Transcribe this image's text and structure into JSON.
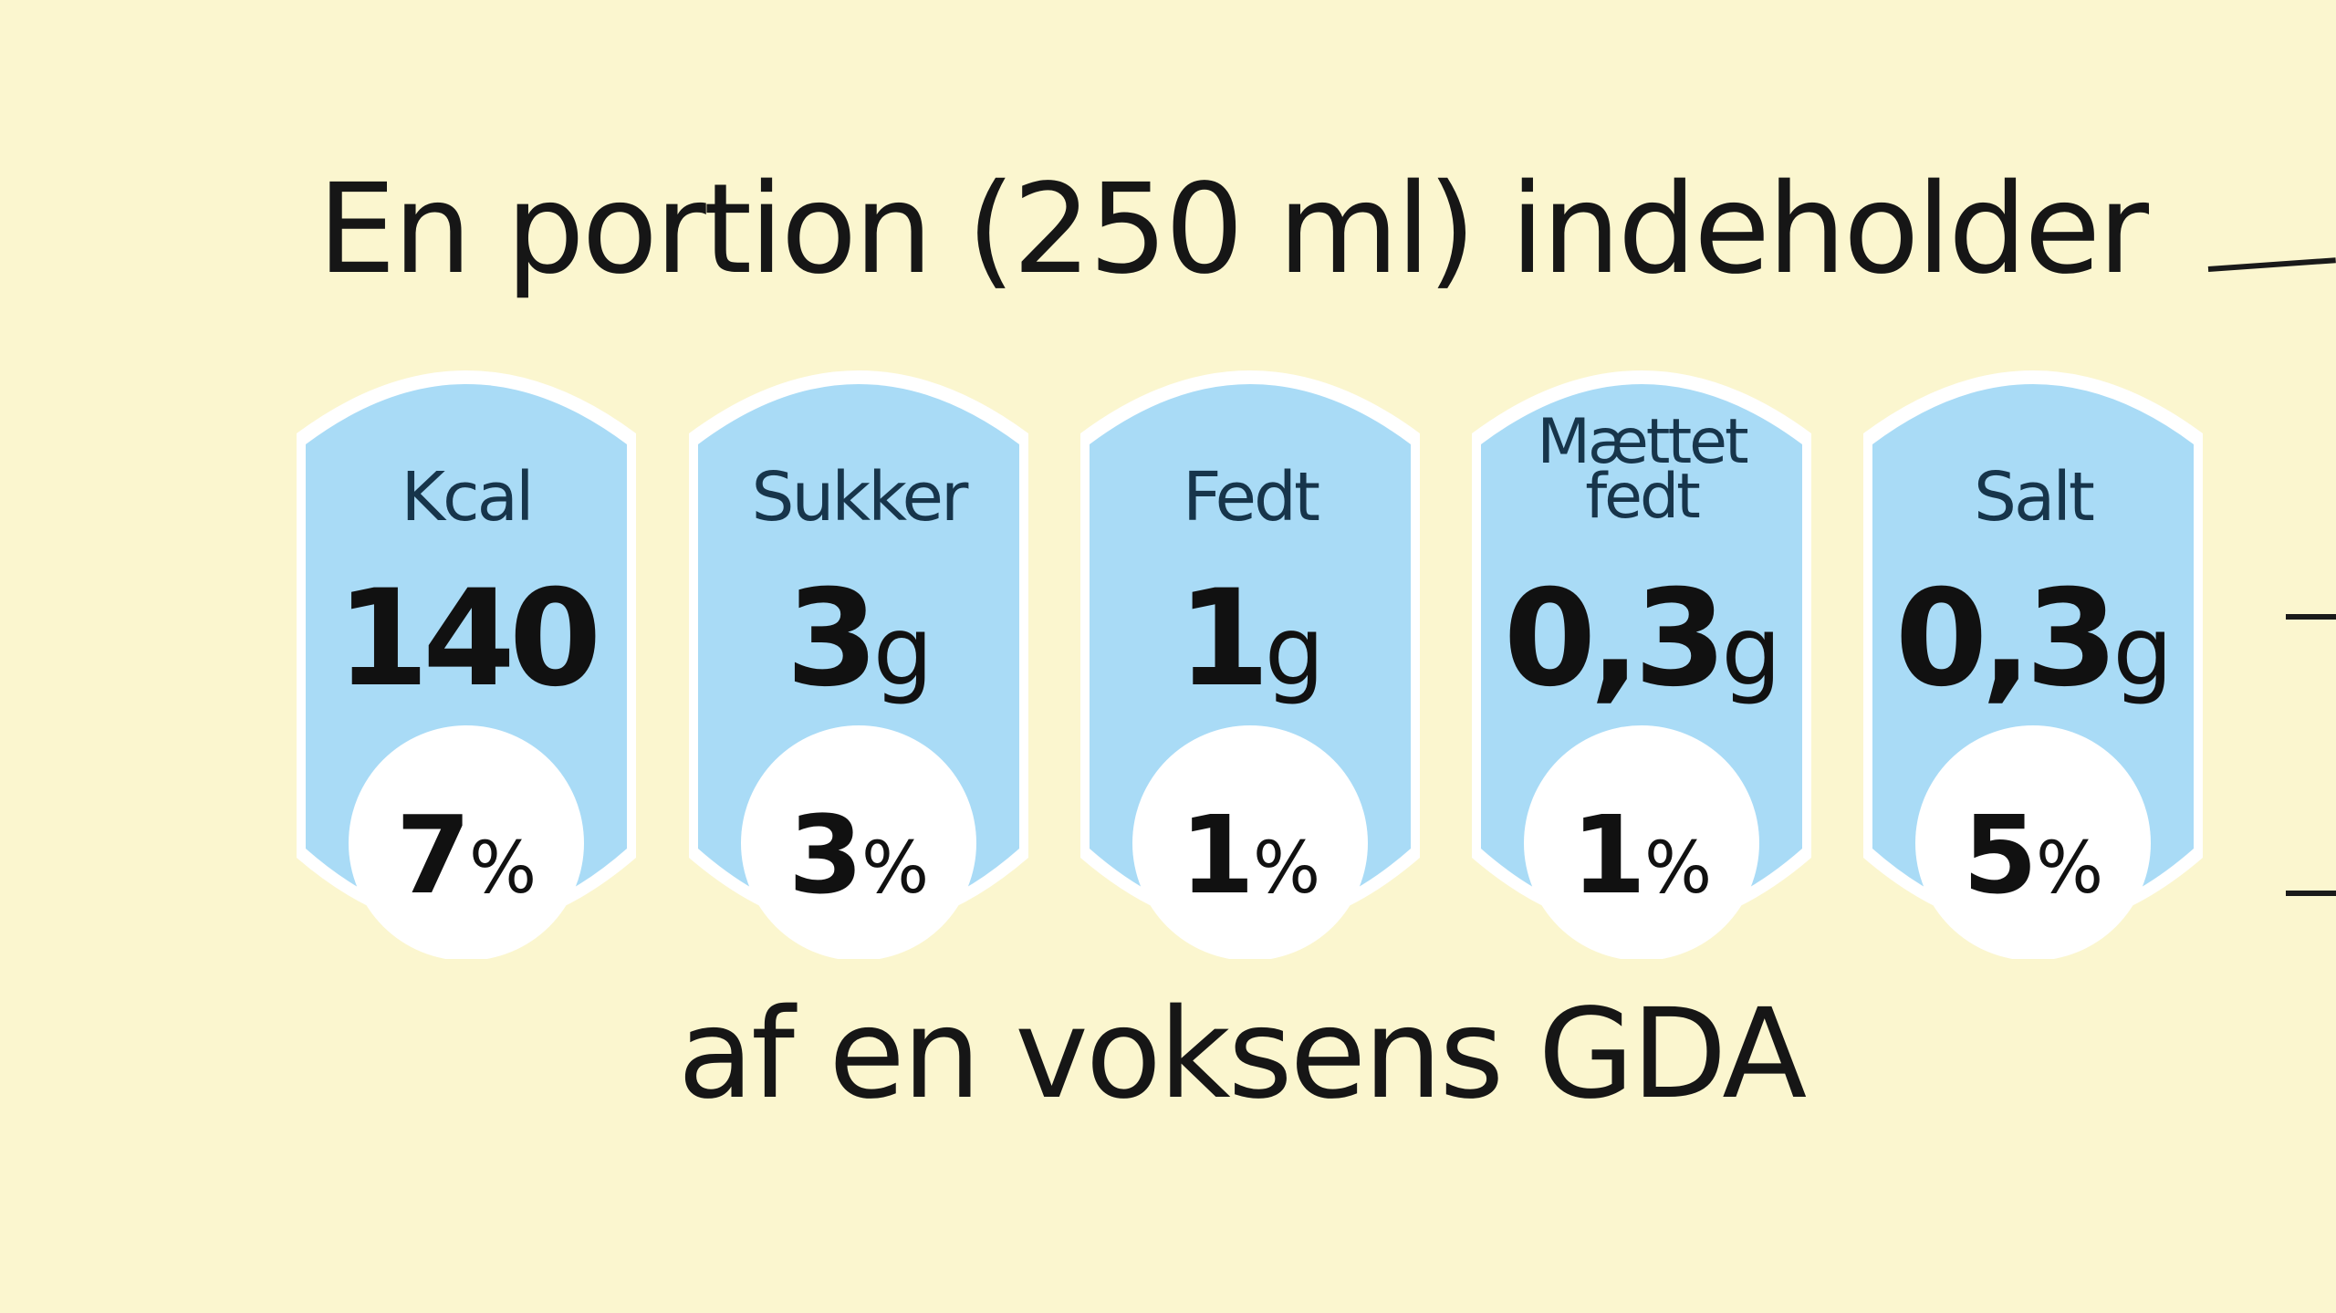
{
  "header": {
    "title": "En portion (250 ml) indeholder"
  },
  "footer": {
    "caption": "af en voksens GDA"
  },
  "nutrients": [
    {
      "label": "Kcal",
      "label_line2": "",
      "value": "140",
      "unit": "",
      "percent": "7",
      "percent_symbol": "%"
    },
    {
      "label": "Sukker",
      "label_line2": "",
      "value": "3",
      "unit": "g",
      "percent": "3",
      "percent_symbol": "%"
    },
    {
      "label": "Fedt",
      "label_line2": "",
      "value": "1",
      "unit": "g",
      "percent": "1",
      "percent_symbol": "%"
    },
    {
      "label": "Mættet",
      "label_line2": "fedt",
      "value": "0,3",
      "unit": "g",
      "percent": "1",
      "percent_symbol": "%"
    },
    {
      "label": "Salt",
      "label_line2": "",
      "value": "0,3",
      "unit": "g",
      "percent": "5",
      "percent_symbol": "%"
    }
  ],
  "colors": {
    "background": "#fbf6cf",
    "badge_fill": "#a9dbf6",
    "badge_border": "#ffffff",
    "text": "#161616"
  }
}
